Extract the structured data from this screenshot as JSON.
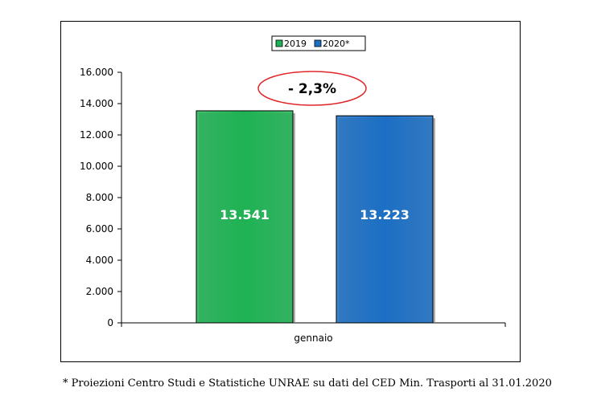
{
  "chart_data": {
    "type": "bar",
    "categories": [
      "gennaio"
    ],
    "series": [
      {
        "name": "2019",
        "values": [
          13541
        ],
        "color": "#1fb254",
        "label": "13.541"
      },
      {
        "name": "2020*",
        "values": [
          13223
        ],
        "color": "#1c6fc4",
        "label": "13.223"
      }
    ],
    "ylim": [
      0,
      16000
    ],
    "yticks": [
      "0",
      "2.000",
      "4.000",
      "6.000",
      "8.000",
      "10.000",
      "12.000",
      "14.000",
      "16.000"
    ],
    "ytick_values": [
      0,
      2000,
      4000,
      6000,
      8000,
      10000,
      12000,
      14000,
      16000
    ],
    "legend_position": "top-center",
    "annotation": {
      "text": "- 2,3%",
      "color": "#e0262a"
    },
    "grid": false
  },
  "footnote": "* Proiezioni Centro Studi e Statistiche UNRAE su dati del CED Min. Trasporti al 31.01.2020"
}
